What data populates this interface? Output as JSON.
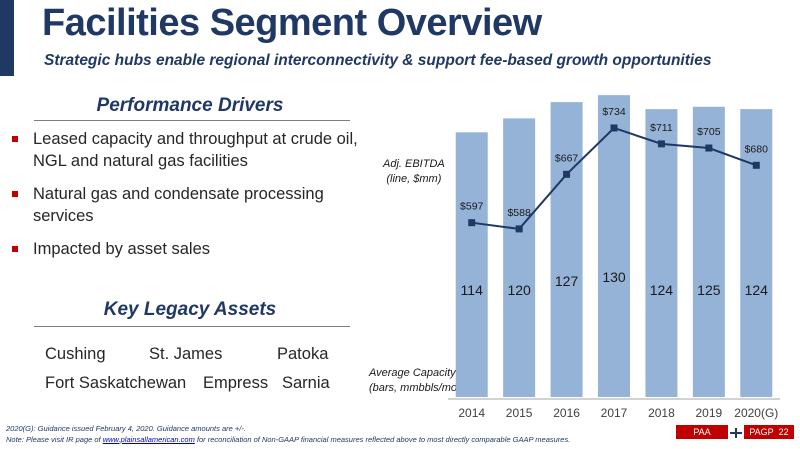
{
  "header": {
    "title": "Facilities Segment Overview",
    "subtitle": "Strategic hubs enable regional interconnectivity & support fee-based growth opportunities"
  },
  "performance_drivers": {
    "heading": "Performance Drivers",
    "items": [
      "Leased capacity and throughput at crude oil, NGL and natural gas facilities",
      "Natural gas and condensate processing services",
      "Impacted by asset sales"
    ]
  },
  "legacy_assets": {
    "heading": "Key Legacy Assets",
    "items": [
      "Cushing",
      "St. James",
      "Patoka",
      "Fort Saskatchewan",
      "Empress",
      "Sarnia"
    ]
  },
  "chart_notes": {
    "line_label": [
      "Adj. EBITDA",
      "(line, $mm)"
    ],
    "bar_label": [
      "Average Capacity",
      "(bars, mmbbls/mo)"
    ]
  },
  "chart_data": {
    "type": "bar",
    "categories": [
      "2014",
      "2015",
      "2016",
      "2017",
      "2018",
      "2019",
      "2020(G)"
    ],
    "series": [
      {
        "values": [
          114,
          120,
          127,
          130,
          124,
          125,
          124
        ],
        "data_labels": [
          "114",
          "120",
          "127",
          "130",
          "124",
          "125",
          "124"
        ]
      },
      {
        "type": "line",
        "values": [
          597,
          588,
          667,
          734,
          711,
          705,
          680
        ],
        "data_labels": [
          "$597",
          "$588",
          "$667",
          "$734",
          "$711",
          "$705",
          "$680"
        ]
      }
    ],
    "bar_ylim": [
      0,
      160
    ],
    "line_ylim": [
      300,
      760
    ],
    "grid": false,
    "colors": {
      "bar": "#95b3d7",
      "line": "#1f3864"
    }
  },
  "footnotes": {
    "line1": "2020(G): Guidance issued February 4, 2020. Guidance amounts are +/-.",
    "line2_before": "Note: Please visit IR page of ",
    "line2_link": "www.plainsallamerican.com",
    "line2_after": " for reconciliation of Non-GAAP financial measures reflected above to most directly comparable GAAP measures."
  },
  "footer": {
    "left": "PAA",
    "right": "PAGP",
    "page": "22"
  }
}
